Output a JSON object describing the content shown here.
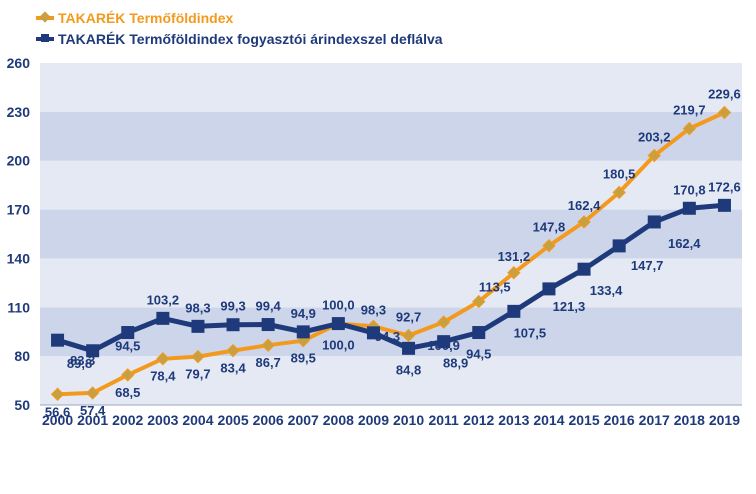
{
  "colors": {
    "orange": "#F39A1E",
    "orange_marker": "#C8A040",
    "navy": "#1F3A7A",
    "band_light": "#E4E9F4",
    "band_dark": "#CCD5EA",
    "axis_text": "#1F3A7A",
    "label_text": "#1F3A7A"
  },
  "chart_data": {
    "type": "line",
    "x": [
      "2000",
      "2001",
      "2002",
      "2003",
      "2004",
      "2005",
      "2006",
      "2007",
      "2008",
      "2009",
      "2010",
      "2011",
      "2012",
      "2013",
      "2014",
      "2015",
      "2016",
      "2017",
      "2018",
      "2019"
    ],
    "ylim": [
      50,
      260
    ],
    "yticks": [
      "50",
      "80",
      "110",
      "140",
      "170",
      "200",
      "230",
      "260"
    ],
    "grid": "alternating horizontal bands",
    "legend_position": "top-left",
    "series": [
      {
        "name": "TAKARÉK Termőföldindex",
        "color": "#F39A1E",
        "marker": "diamond",
        "values": [
          56.6,
          57.4,
          68.5,
          78.4,
          79.7,
          83.4,
          86.7,
          89.5,
          100.0,
          98.3,
          92.7,
          100.9,
          113.5,
          131.2,
          147.8,
          162.4,
          180.5,
          203.2,
          219.7,
          229.6
        ],
        "labels": [
          "56,6",
          "57,4",
          "68,5",
          "78,4",
          "79,7",
          "83,4",
          "86,7",
          "89,5",
          "100,0",
          "98,3",
          "92,7",
          "100,9",
          "113,5",
          "131,2",
          "147,8",
          "162,4",
          "180,5",
          "203,2",
          "219,7",
          "229,6"
        ]
      },
      {
        "name": "TAKARÉK Termőföldindex fogyasztói árindexszel deflálva",
        "color": "#1F3A7A",
        "marker": "square",
        "values": [
          89.8,
          83.3,
          94.5,
          103.2,
          98.3,
          99.3,
          99.4,
          94.9,
          100.0,
          94.3,
          84.8,
          88.9,
          94.5,
          107.5,
          121.3,
          133.4,
          147.7,
          162.4,
          170.8,
          172.6
        ],
        "labels": [
          "89,8",
          "83,3",
          "94,5",
          "103,2",
          "98,3",
          "99,3",
          "99,4",
          "94,9",
          "100,0",
          "94,3",
          "84,8",
          "88,9",
          "94,5",
          "107,5",
          "121,3",
          "133,4",
          "147,7",
          "162,4",
          "170,8",
          "172,6"
        ]
      }
    ]
  }
}
